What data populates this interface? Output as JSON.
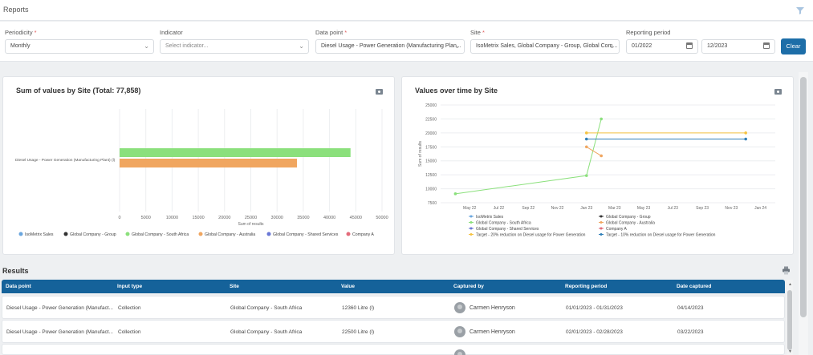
{
  "header": {
    "title": "Reports",
    "filter_icon": "filter-icon"
  },
  "filters": {
    "periodicity": {
      "label": "Periodicity",
      "value": "Monthly"
    },
    "indicator": {
      "label": "Indicator",
      "placeholder": "Select indicator..."
    },
    "data_point": {
      "label": "Data point",
      "value": "Diesel Usage - Power Generation (Manufacturing Plan..."
    },
    "site": {
      "label": "Site",
      "value": "IsoMetrix Sales, Global Company - Group, Global Com..."
    },
    "reporting_period": {
      "label": "Reporting period",
      "from": "01/2022",
      "to": "12/2023"
    },
    "required_marker": "*",
    "clear_label": "Clear"
  },
  "colors": {
    "accent": "#1d6ea8",
    "table_header": "#15629a",
    "isometrix_sales": "#6aa6de",
    "global_group": "#333333",
    "south_africa": "#8be07c",
    "australia": "#f0a660",
    "shared_services": "#6a78d6",
    "company_a": "#e36b7a",
    "target_20": "#f5c342",
    "target_10": "#2f7fb8"
  },
  "chart_data": [
    {
      "type": "bar",
      "title": "Sum of values by Site (Total: 77,858)",
      "categories": [
        "Diesel Usage - Power Generation (Manufacturing Plant) (l)"
      ],
      "series": [
        {
          "name": "Global Company - South Africa",
          "values": [
            44000
          ],
          "color": "#8be07c"
        },
        {
          "name": "Global Company - Australia",
          "values": [
            33800
          ],
          "color": "#f0a660"
        }
      ],
      "xlabel": "Sum of results",
      "xlim": [
        0,
        50000
      ],
      "xticks": [
        "0",
        "5000",
        "10000",
        "15000",
        "20000",
        "25000",
        "30000",
        "35000",
        "40000",
        "45000",
        "50000"
      ],
      "grid": true,
      "legend": [
        {
          "name": "IsoMetrix Sales",
          "color": "#6aa6de"
        },
        {
          "name": "Global Company - Group",
          "color": "#333333"
        },
        {
          "name": "Global Company - South Africa",
          "color": "#8be07c"
        },
        {
          "name": "Global Company - Australia",
          "color": "#f0a660"
        },
        {
          "name": "Global Company - Shared Services",
          "color": "#6a78d6"
        },
        {
          "name": "Company A",
          "color": "#e36b7a"
        }
      ],
      "legend_position": "bottom"
    },
    {
      "type": "line",
      "title": "Values over time by Site",
      "ylabel": "Sum of results",
      "ylim": [
        7500,
        25000
      ],
      "yticks": [
        "25000",
        "22500",
        "20000",
        "17500",
        "15000",
        "12500",
        "10000",
        "7500"
      ],
      "xticks": [
        "May 22",
        "Jul 22",
        "Sep 22",
        "Nov 22",
        "Jan 23",
        "Mar 23",
        "May 23",
        "Jul 23",
        "Sep 23",
        "Nov 23",
        "Jan 24"
      ],
      "series": [
        {
          "name": "Global Company - South Africa",
          "color": "#8be07c",
          "points": [
            {
              "x": "2022-04-01",
              "y": 9100
            },
            {
              "x": "2023-01-01",
              "y": 12360
            },
            {
              "x": "2023-02-01",
              "y": 22500
            }
          ]
        },
        {
          "name": "Global Company - Australia",
          "color": "#f0a660",
          "points": [
            {
              "x": "2023-01-01",
              "y": 17500
            },
            {
              "x": "2023-02-01",
              "y": 15900
            }
          ]
        },
        {
          "name": "Target - 20% reduction on Diesel usage for Power Generation",
          "color": "#f5c342",
          "points": [
            {
              "x": "2023-01-01",
              "y": 20000
            },
            {
              "x": "2023-12-01",
              "y": 20000
            }
          ]
        },
        {
          "name": "Target - 10% reduction on Diesel usage for Power Generation",
          "color": "#2f7fb8",
          "points": [
            {
              "x": "2023-01-01",
              "y": 18900
            },
            {
              "x": "2023-12-01",
              "y": 18900
            }
          ]
        }
      ],
      "grid": true,
      "legend": [
        {
          "name": "IsoMetrix Sales",
          "color": "#6aa6de"
        },
        {
          "name": "Global Company - Group",
          "color": "#333333"
        },
        {
          "name": "Global Company - South Africa",
          "color": "#8be07c"
        },
        {
          "name": "Global Company - Australia",
          "color": "#f0a660"
        },
        {
          "name": "Global Company - Shared Services",
          "color": "#6a78d6"
        },
        {
          "name": "Company A",
          "color": "#e36b7a"
        },
        {
          "name": "Target - 20% reduction on Diesel usage for Power Generation",
          "color": "#f5c342"
        },
        {
          "name": "Target - 10% reduction on Diesel usage for Power Generation",
          "color": "#2f7fb8"
        }
      ],
      "legend_position": "bottom"
    }
  ],
  "results": {
    "title": "Results",
    "columns": [
      "Data point",
      "Input type",
      "Site",
      "Value",
      "Captured by",
      "Reporting period",
      "Date captured"
    ],
    "rows": [
      [
        "Diesel Usage - Power Generation (Manufact...",
        "Collection",
        "Global Company - South Africa",
        "12360 Litre (l)",
        "Carmen Henryson",
        "01/01/2023 - 01/31/2023",
        "04/14/2023"
      ],
      [
        "Diesel Usage - Power Generation (Manufact...",
        "Collection",
        "Global Company - South Africa",
        "22500 Litre (l)",
        "Carmen Henryson",
        "02/01/2023 - 02/28/2023",
        "03/22/2023"
      ]
    ]
  }
}
